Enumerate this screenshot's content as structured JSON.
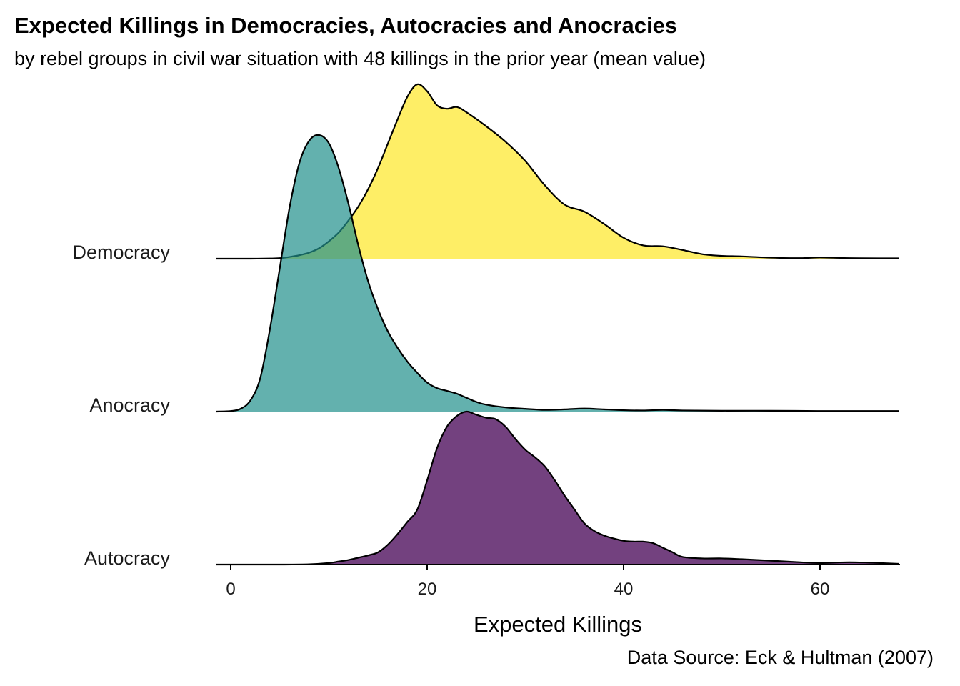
{
  "chart_data": {
    "type": "area",
    "subtype": "ridgeline",
    "title": "Expected Killings in Democracies, Autocracies and Anocracies",
    "subtitle": "by rebel groups in civil war situation with 48 killings in the prior year (mean value)",
    "xlabel": "Expected Killings",
    "ylabel": "",
    "caption": "Data Source: Eck & Hultman (2007)",
    "xlim": [
      -1.5,
      68
    ],
    "xticks": [
      0,
      20,
      40,
      60
    ],
    "xtick_labels": [
      "0",
      "20",
      "40",
      "60"
    ],
    "grid": false,
    "series": [
      {
        "name": "Democracy",
        "color": "#FDE725",
        "x": [
          -1.5,
          0,
          2,
          4,
          5,
          6,
          7,
          8,
          9,
          10,
          11,
          12,
          13,
          14,
          15,
          16,
          17,
          18,
          19,
          20,
          21,
          22,
          23,
          24,
          26,
          28,
          30,
          32,
          34,
          36,
          38,
          40,
          42,
          44,
          46,
          48,
          50,
          52,
          55,
          58,
          60,
          63,
          66,
          68
        ],
        "density": [
          0,
          0,
          0,
          0.001,
          0.003,
          0.01,
          0.02,
          0.035,
          0.06,
          0.1,
          0.15,
          0.22,
          0.3,
          0.4,
          0.52,
          0.66,
          0.8,
          0.93,
          1.0,
          0.96,
          0.88,
          0.86,
          0.87,
          0.84,
          0.76,
          0.67,
          0.56,
          0.42,
          0.31,
          0.27,
          0.2,
          0.12,
          0.076,
          0.071,
          0.05,
          0.026,
          0.016,
          0.013,
          0.006,
          0.003,
          0.007,
          0.003,
          0.002,
          0.002
        ]
      },
      {
        "name": "Anocracy",
        "color": "#21908C",
        "x": [
          -1.5,
          0,
          1,
          2,
          3,
          4,
          5,
          6,
          7,
          8,
          9,
          10,
          11,
          12,
          13,
          14,
          15,
          16,
          17,
          18,
          19,
          20,
          21,
          22,
          23,
          24,
          25,
          26,
          28,
          30,
          32,
          34,
          36,
          38,
          40,
          42,
          44,
          46,
          50,
          55,
          60,
          65,
          68
        ],
        "density": [
          0,
          0.002,
          0.01,
          0.04,
          0.12,
          0.3,
          0.52,
          0.74,
          0.9,
          0.98,
          1.0,
          0.97,
          0.88,
          0.75,
          0.6,
          0.47,
          0.37,
          0.29,
          0.23,
          0.18,
          0.14,
          0.105,
          0.085,
          0.075,
          0.065,
          0.05,
          0.035,
          0.025,
          0.015,
          0.01,
          0.006,
          0.008,
          0.011,
          0.008,
          0.005,
          0.004,
          0.006,
          0.004,
          0.003,
          0.003,
          0.002,
          0.002,
          0.002
        ]
      },
      {
        "name": "Autocracy",
        "color": "#440154",
        "x": [
          -1.5,
          0,
          5,
          8,
          10,
          11,
          12,
          13,
          14,
          15,
          16,
          17,
          18,
          19,
          20,
          21,
          22,
          23,
          24,
          25,
          26,
          27,
          28,
          29,
          30,
          31,
          32,
          33,
          34,
          35,
          36,
          37,
          38,
          39,
          40,
          41,
          42,
          43,
          44,
          45,
          46,
          48,
          50,
          52,
          55,
          58,
          60,
          63,
          66,
          68
        ],
        "density": [
          0,
          0,
          0,
          0.002,
          0.01,
          0.02,
          0.03,
          0.045,
          0.06,
          0.08,
          0.13,
          0.2,
          0.28,
          0.36,
          0.55,
          0.76,
          0.9,
          0.97,
          1.0,
          0.98,
          0.96,
          0.95,
          0.9,
          0.82,
          0.75,
          0.7,
          0.64,
          0.55,
          0.45,
          0.36,
          0.27,
          0.22,
          0.19,
          0.17,
          0.155,
          0.15,
          0.15,
          0.14,
          0.11,
          0.08,
          0.05,
          0.04,
          0.04,
          0.035,
          0.025,
          0.015,
          0.01,
          0.015,
          0.01,
          0.005
        ]
      }
    ]
  }
}
